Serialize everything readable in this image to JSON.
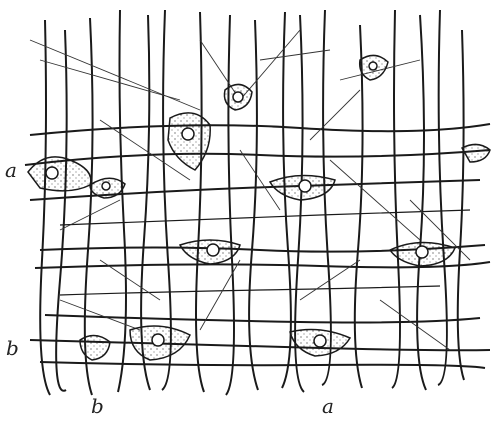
{
  "figure": {
    "kind": "histological line drawing of a network of neuroglial (astrocyte) cells with crossing fibres",
    "ink_color": "#1a1a1a",
    "cell_fill": "#ffffff"
  },
  "labels": {
    "left_a": "a",
    "left_b": "b",
    "bottom_b": "b",
    "bottom_a": "a"
  }
}
